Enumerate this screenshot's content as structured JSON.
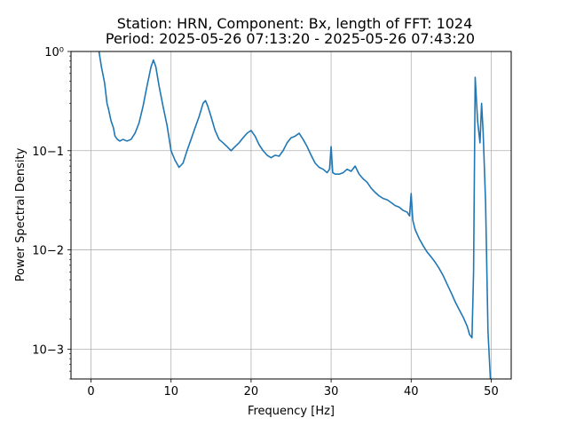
{
  "chart_data": {
    "type": "line",
    "title": "Station: HRN, Component: Bx, length of FFT: 1024",
    "subtitle": "Period: 2025-05-26 07:13:20 - 2025-05-26 07:43:20",
    "xlabel": "Frequency [Hz]",
    "ylabel": "Power Spectral Density",
    "x_scale": "linear",
    "y_scale": "log",
    "xlim": [
      -2.5,
      52.5
    ],
    "ylim": [
      0.0005,
      1
    ],
    "x_ticks": [
      0,
      10,
      20,
      30,
      40,
      50
    ],
    "x_tick_labels": [
      "0",
      "10",
      "20",
      "30",
      "40",
      "50"
    ],
    "y_ticks": [
      0.001,
      0.01,
      0.1,
      1
    ],
    "y_tick_labels": [
      "10−3",
      "10−2",
      "10−1",
      "10⁰"
    ],
    "grid": true,
    "legend": "none",
    "color": "#1f77b4",
    "series": [
      {
        "x": [
          1.0,
          1.3,
          1.7,
          2.0,
          2.2,
          2.5,
          2.8,
          3.0,
          3.3,
          3.6,
          4.0,
          4.5,
          5.0,
          5.5,
          6.0,
          6.5,
          7.0,
          7.5,
          7.8,
          8.1,
          8.5,
          9.0,
          9.5,
          10.0,
          10.5,
          11.0,
          11.5,
          12.0,
          12.5,
          13.0,
          13.5,
          14.0,
          14.3,
          14.6,
          15.0,
          15.5,
          16.0,
          16.5,
          17.0,
          17.5,
          18.0,
          18.5,
          19.0,
          19.5,
          20.0,
          20.5,
          21.0,
          21.5,
          22.0,
          22.5,
          23.0,
          23.5,
          24.0,
          24.5,
          25.0,
          25.5,
          26.0,
          26.5,
          27.0,
          27.5,
          28.0,
          28.5,
          29.0,
          29.5,
          29.8,
          30.0,
          30.2,
          30.5,
          31.0,
          31.5,
          32.0,
          32.5,
          33.0,
          33.5,
          34.0,
          34.5,
          35.0,
          35.5,
          36.0,
          36.5,
          37.0,
          37.5,
          38.0,
          38.5,
          39.0,
          39.5,
          39.8,
          40.0,
          40.2,
          40.5,
          41.0,
          41.5,
          42.0,
          42.5,
          43.0,
          43.5,
          44.0,
          44.5,
          45.0,
          45.5,
          46.0,
          46.5,
          47.0,
          47.3,
          47.6,
          47.8,
          48.0,
          48.3,
          48.6,
          48.8,
          49.0,
          49.3,
          49.6,
          49.9
        ],
        "y": [
          1.0,
          0.7,
          0.48,
          0.3,
          0.26,
          0.2,
          0.17,
          0.14,
          0.13,
          0.125,
          0.13,
          0.125,
          0.13,
          0.15,
          0.19,
          0.28,
          0.45,
          0.7,
          0.82,
          0.7,
          0.45,
          0.28,
          0.18,
          0.1,
          0.08,
          0.068,
          0.075,
          0.1,
          0.13,
          0.17,
          0.22,
          0.3,
          0.32,
          0.28,
          0.22,
          0.16,
          0.13,
          0.12,
          0.11,
          0.1,
          0.11,
          0.12,
          0.135,
          0.15,
          0.16,
          0.14,
          0.115,
          0.1,
          0.09,
          0.085,
          0.09,
          0.088,
          0.1,
          0.12,
          0.135,
          0.14,
          0.15,
          0.13,
          0.11,
          0.09,
          0.075,
          0.068,
          0.065,
          0.06,
          0.065,
          0.11,
          0.06,
          0.058,
          0.058,
          0.06,
          0.065,
          0.062,
          0.07,
          0.058,
          0.052,
          0.048,
          0.042,
          0.038,
          0.035,
          0.033,
          0.032,
          0.03,
          0.028,
          0.027,
          0.025,
          0.024,
          0.022,
          0.037,
          0.02,
          0.016,
          0.013,
          0.011,
          0.0095,
          0.0085,
          0.0075,
          0.0065,
          0.0055,
          0.0045,
          0.0037,
          0.003,
          0.0025,
          0.0021,
          0.0017,
          0.0014,
          0.0013,
          0.006,
          0.55,
          0.2,
          0.12,
          0.3,
          0.15,
          0.03,
          0.0015,
          0.0005
        ]
      }
    ]
  }
}
